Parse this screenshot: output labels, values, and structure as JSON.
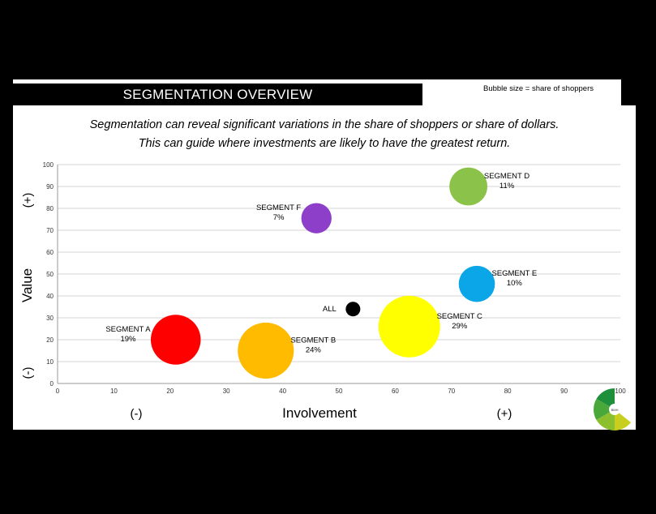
{
  "header": {
    "title": "SEGMENTATION OVERVIEW",
    "bubble_note": "Bubble size = share of shoppers"
  },
  "subtitle": {
    "line1": "Segmentation can reveal significant variations in the share of shoppers or share of dollars.",
    "line2": "This can guide where investments are likely to have the greatest return."
  },
  "axis_signs": {
    "y_plus": "(+)",
    "y_minus": "(-)",
    "x_minus": "(-)",
    "x_plus": "(+)"
  },
  "chart_data": {
    "type": "scatter",
    "title": "SEGMENTATION OVERVIEW",
    "xlabel": "Involvement",
    "ylabel": "Value",
    "xlim": [
      0,
      100
    ],
    "ylim": [
      0,
      100
    ],
    "xticks": [
      0,
      10,
      20,
      30,
      40,
      50,
      60,
      70,
      80,
      90,
      100
    ],
    "yticks": [
      0,
      10,
      20,
      30,
      40,
      50,
      60,
      70,
      80,
      90,
      100
    ],
    "grid": "horizontal",
    "size_meaning": "Bubble size = share of shoppers",
    "points": [
      {
        "name": "SEGMENT A",
        "share": "19%",
        "x": 21,
        "y": 20,
        "size": 19,
        "color": "#ff0000",
        "label_side": "left"
      },
      {
        "name": "SEGMENT B",
        "share": "24%",
        "x": 37,
        "y": 15,
        "size": 24,
        "color": "#ffbb00",
        "label_side": "right"
      },
      {
        "name": "SEGMENT C",
        "share": "29%",
        "x": 62.5,
        "y": 26,
        "size": 29,
        "color": "#ffff00",
        "label_side": "right"
      },
      {
        "name": "SEGMENT D",
        "share": "11%",
        "x": 73,
        "y": 90,
        "size": 11,
        "color": "#8bc34a",
        "label_side": "right"
      },
      {
        "name": "SEGMENT E",
        "share": "10%",
        "x": 74.5,
        "y": 45.5,
        "size": 10,
        "color": "#0aa6e8",
        "label_side": "right"
      },
      {
        "name": "SEGMENT F",
        "share": "7%",
        "x": 46,
        "y": 75.5,
        "size": 7,
        "color": "#8e3fc9",
        "label_side": "left"
      },
      {
        "name": "ALL",
        "share": "",
        "x": 52.5,
        "y": 34,
        "size": 2,
        "color": "#000000",
        "label_side": "left"
      }
    ]
  },
  "logo": {
    "center_text": "BMH",
    "colors": [
      "#1e8f3a",
      "#4aa83a",
      "#8cbf2e",
      "#c9cf1f"
    ]
  }
}
